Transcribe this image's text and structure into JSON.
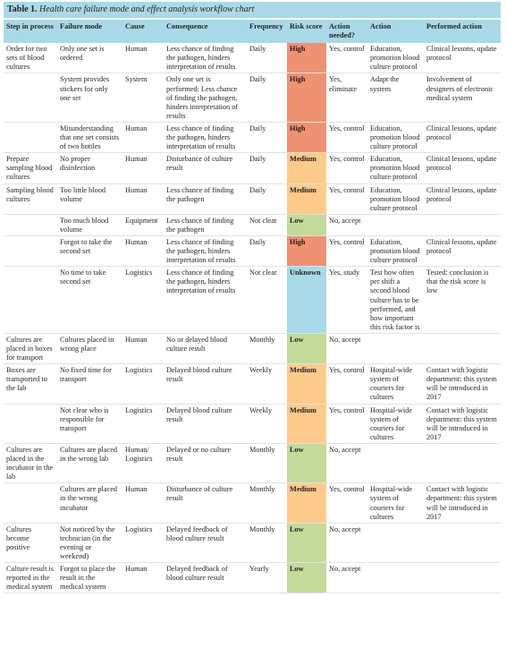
{
  "table": {
    "label": "Table 1.",
    "caption": "Health care failure mode and effect analysis workflow chart",
    "header": [
      "Step in process",
      "Failure mode",
      "Cause",
      "Consequence",
      "Frequency",
      "Risk score",
      "Action needed?",
      "Action",
      "Performed action"
    ],
    "risk_colors": {
      "High": "#ef9273",
      "Medium": "#fccb8c",
      "Low": "#c4da9b",
      "Unknown": "#a9d9e8"
    },
    "rows": [
      [
        "Order for two sets of blood cultures",
        "Only one set is ordered",
        "Human",
        "Less chance of finding the pathogen, hinders interpretation of results",
        "Daily",
        "High",
        "Yes, control",
        "Education, promotion blood culture protocol",
        "Clinical lessons, update protocol"
      ],
      [
        null,
        "System provides stickers for only one set",
        "System",
        "Only one set is performed: Less chance of finding the pathogen, hinders interpretation of results",
        "Daily",
        "High",
        "Yes, eliminate",
        "Adapt the system",
        "Involvement of designers of electronic medical system"
      ],
      [
        null,
        "Misunderstanding that one set consists of two bottles",
        "Human",
        "Less chance of finding the pathogen, hinders interpretation of results",
        "Daily",
        "High",
        "Yes, control",
        "Education, promotion blood culture protocol",
        "Clinical lessons, update protocol"
      ],
      [
        "Prepare sampling blood cultures",
        "No proper disinfection",
        "Human",
        "Disturbance of culture result",
        "Daily",
        "Medium",
        "Yes, control",
        "Education, promotion blood culture protocol",
        "Clinical lessons, update protocol"
      ],
      [
        "Sampling blood cultures",
        "Too little blood volume",
        "Human",
        "Less chance of finding the pathogen",
        "Daily",
        "Medium",
        "Yes, control",
        "Education, promotion blood culture protocol",
        "Clinical lessons, update protocol"
      ],
      [
        null,
        "Too much blood volume",
        "Equipment",
        "Less chance of finding the pathogen",
        "Not clear",
        "Low",
        "No, accept",
        null,
        null
      ],
      [
        null,
        "Forgot to take the second set",
        "Human",
        "Less chance of finding the pathogen, hinders interpretation of results",
        "Daily",
        "High",
        "Yes, control",
        "Education, promotion blood culture protocol",
        "Clinical lessons, update protocol"
      ],
      [
        null,
        "No time to take second set",
        "Logistics",
        "Less chance of finding the pathogen, hinders interpretation of results",
        "Not clear",
        "Unknown",
        "Yes, study",
        "Test how often per shift a second blood culture has to be performed, and how important this risk factor is",
        "Tested: conclusion is that the risk score is low"
      ],
      [
        "Cultures are placed in boxes for transport",
        "Cultures placed in wrong place",
        "Human",
        "No or delayed blood culture result",
        "Monthly",
        "Low",
        "No, accept",
        null,
        null
      ],
      [
        "Boxes are transported to the lab",
        "No fixed time for transport",
        "Logistics",
        "Delayed blood culture result",
        "Weekly",
        "Medium",
        "Yes, control",
        "Hospital-wide system of couriers for cultures",
        "Contact with logistic department: this system will be introduced in 2017"
      ],
      [
        null,
        "Not clear who is responsible for transport",
        "Logistics",
        "Delayed blood culture result",
        "Weekly",
        "Medium",
        "Yes, control",
        "Hospital-wide system of couriers for cultures",
        "Contact with logistic department: this system will be introduced in 2017"
      ],
      [
        "Cultures are placed in the incubator in the lab",
        "Cultures are placed in the wrong lab",
        "Human/ Logistics",
        "Delayed or no culture result",
        "Monthly",
        "Low",
        "No, accept",
        null,
        null
      ],
      [
        null,
        "Cultures are placed in the wrong incubator",
        "Human",
        "Disturbance of culture result",
        "Monthly",
        "Medium",
        "Yes, control",
        "Hospital-wide system of couriers for cultures",
        "Contact with logistic department: this system will be introduced in 2017"
      ],
      [
        "Cultures become positive",
        "Not noticed by the technician (in the evening or weekend)",
        "Logistics",
        "Delayed feedback of blood culture result",
        "Monthly",
        "Low",
        "No, accept",
        null,
        null
      ],
      [
        "Culture result is reported in the medical system",
        "Forgot to place the result in the medical system",
        "Human",
        "Delayed feedback of blood culture result",
        "Yearly",
        "Low",
        "No, accept",
        null,
        null
      ]
    ]
  }
}
